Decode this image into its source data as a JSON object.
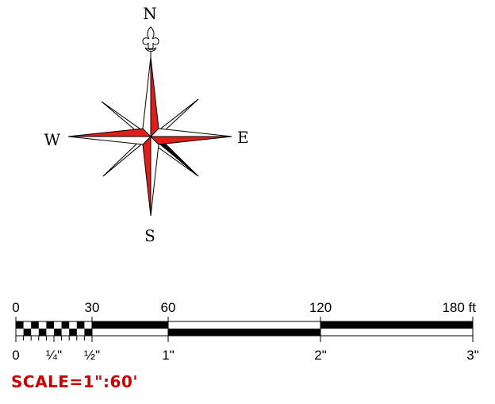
{
  "compass": {
    "north": "N",
    "south": "S",
    "east": "E",
    "west": "W",
    "colors": {
      "main_fill": "#e21b1b",
      "dark_fill": "#000000",
      "light_fill": "#ffffff",
      "stroke": "#000000"
    }
  },
  "scale_bar": {
    "top_labels": [
      {
        "text": "0",
        "value_ft": 0
      },
      {
        "text": "30",
        "value_ft": 30
      },
      {
        "text": "60",
        "value_ft": 60
      },
      {
        "text": "120",
        "value_ft": 120
      },
      {
        "text": "180 ft",
        "value_ft": 180
      }
    ],
    "bottom_labels": [
      {
        "text": "0",
        "value_in": 0
      },
      {
        "text": "¼\"",
        "value_in": 0.25
      },
      {
        "text": "½\"",
        "value_in": 0.5
      },
      {
        "text": "1\"",
        "value_in": 1
      },
      {
        "text": "2\"",
        "value_in": 2
      },
      {
        "text": "3\"",
        "value_in": 3
      }
    ],
    "max_ft": 180,
    "max_in": 3,
    "subdivision_ft": 30,
    "subdivision_count": 10,
    "color": "#000000"
  },
  "scale_note": {
    "text": "SCALE=1\":60'",
    "color": "#cc0000"
  }
}
